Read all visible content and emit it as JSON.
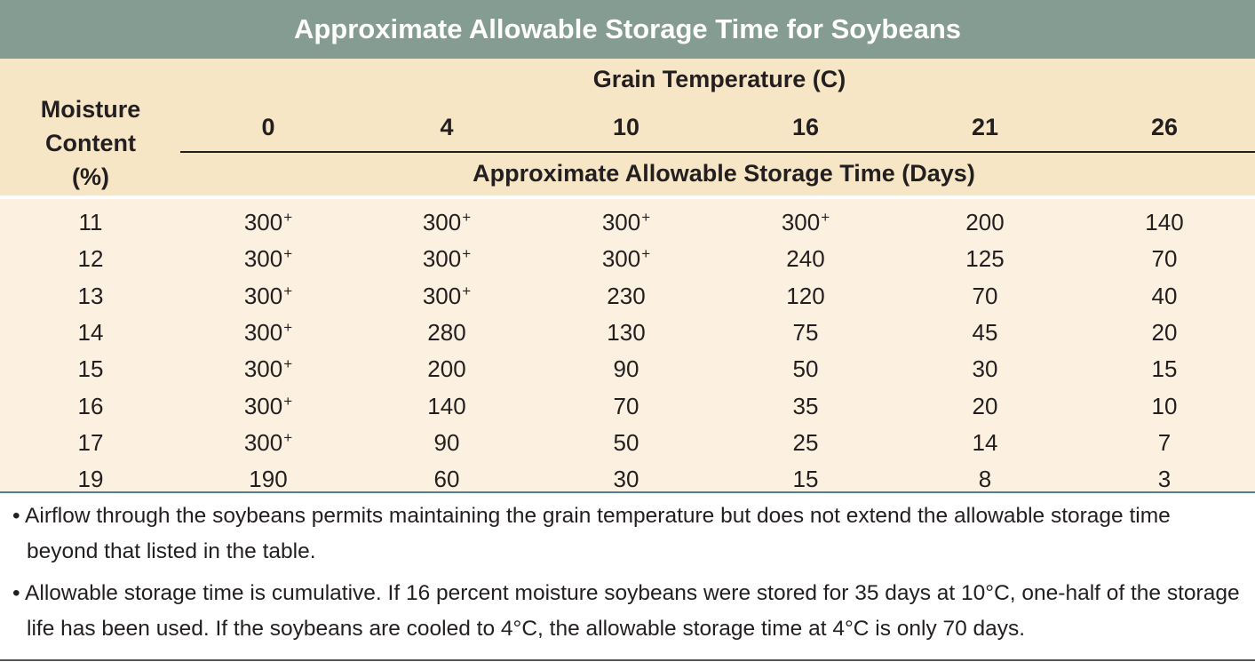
{
  "title": "Approximate Allowable Storage Time for Soybeans",
  "header": {
    "moisture_label": "Moisture\nContent\n(%)",
    "grain_temp_label": "Grain Temperature (C)",
    "temperatures": [
      "0",
      "4",
      "10",
      "16",
      "21",
      "26"
    ],
    "storage_label": "Approximate Allowable Storage Time (Days)"
  },
  "rows": [
    {
      "moisture": "11",
      "values": [
        "300",
        "300",
        "300",
        "300",
        "200",
        "140"
      ],
      "plus": [
        true,
        true,
        true,
        true,
        false,
        false
      ]
    },
    {
      "moisture": "12",
      "values": [
        "300",
        "300",
        "300",
        "240",
        "125",
        "70"
      ],
      "plus": [
        true,
        true,
        true,
        false,
        false,
        false
      ]
    },
    {
      "moisture": "13",
      "values": [
        "300",
        "300",
        "230",
        "120",
        "70",
        "40"
      ],
      "plus": [
        true,
        true,
        false,
        false,
        false,
        false
      ]
    },
    {
      "moisture": "14",
      "values": [
        "300",
        "280",
        "130",
        "75",
        "45",
        "20"
      ],
      "plus": [
        true,
        false,
        false,
        false,
        false,
        false
      ]
    },
    {
      "moisture": "15",
      "values": [
        "300",
        "200",
        "90",
        "50",
        "30",
        "15"
      ],
      "plus": [
        true,
        false,
        false,
        false,
        false,
        false
      ]
    },
    {
      "moisture": "16",
      "values": [
        "300",
        "140",
        "70",
        "35",
        "20",
        "10"
      ],
      "plus": [
        true,
        false,
        false,
        false,
        false,
        false
      ]
    },
    {
      "moisture": "17",
      "values": [
        "300",
        "90",
        "50",
        "25",
        "14",
        "7"
      ],
      "plus": [
        true,
        false,
        false,
        false,
        false,
        false
      ]
    },
    {
      "moisture": "19",
      "values": [
        "190",
        "60",
        "30",
        "15",
        "8",
        "3"
      ],
      "plus": [
        false,
        false,
        false,
        false,
        false,
        false
      ]
    }
  ],
  "plus_sign": "+",
  "notes": [
    "• Airflow through the soybeans permits maintaining the grain temperature but does not extend the allowable storage time beyond that listed in the table.",
    "• Allowable storage time is cumulative. If 16 percent moisture soybeans were stored for 35 days at 10°C, one-half of the storage life has been used. If the soybeans are cooled to 4°C, the allowable storage time at 4°C is only 70 days."
  ],
  "colors": {
    "title_bg": "#849c92",
    "header_bg": "#f7e6c5",
    "body_bg": "#fcf1e0",
    "rule_blue": "#4f7ea7"
  }
}
